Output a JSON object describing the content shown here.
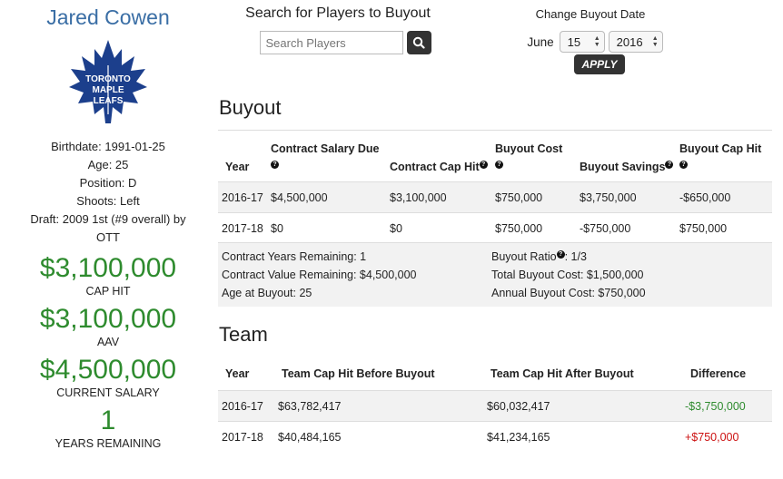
{
  "player": {
    "name": "Jared Cowen",
    "logo_text": [
      "TORONTO",
      "MAPLE",
      "LEAFS"
    ],
    "birthdate": "Birthdate: 1991-01-25",
    "age": "Age: 25",
    "position": "Position: D",
    "shoots": "Shoots: Left",
    "draft": "Draft: 2009 1st (#9 overall) by OTT",
    "stats": [
      {
        "value": "$3,100,000",
        "label": "CAP HIT"
      },
      {
        "value": "$3,100,000",
        "label": "AAV"
      },
      {
        "value": "$4,500,000",
        "label": "CURRENT SALARY"
      },
      {
        "value": "1",
        "label": "YEARS REMAINING"
      }
    ]
  },
  "search": {
    "title": "Search for Players to Buyout",
    "placeholder": "Search Players",
    "icon": "search-icon"
  },
  "date": {
    "title": "Change Buyout Date",
    "month": "June",
    "day": "15",
    "year": "2016",
    "apply_label": "APPLY"
  },
  "buyout": {
    "title": "Buyout",
    "headers": [
      "Year",
      "Contract Salary Due",
      "Contract Cap Hit",
      "Buyout Cost",
      "Buyout Savings",
      "Buyout Cap Hit"
    ],
    "rows": [
      [
        "2016-17",
        "$4,500,000",
        "$3,100,000",
        "$750,000",
        "$3,750,000",
        "-$650,000"
      ],
      [
        "2017-18",
        "$0",
        "$0",
        "$750,000",
        "-$750,000",
        "$750,000"
      ]
    ],
    "summary": {
      "contract_years": "Contract Years Remaining: 1",
      "contract_value": "Contract Value Remaining: $4,500,000",
      "age_at_buyout": "Age at Buyout: 25",
      "ratio_label": "Buyout Ratio",
      "ratio_value": ": 1/3",
      "total_cost": "Total Buyout Cost: $1,500,000",
      "annual_cost": "Annual Buyout Cost: $750,000"
    }
  },
  "team": {
    "title": "Team",
    "headers": [
      "Year",
      "Team Cap Hit Before Buyout",
      "Team Cap Hit After Buyout",
      "Difference"
    ],
    "rows": [
      [
        "2016-17",
        "$63,782,417",
        "$60,032,417",
        "-$3,750,000"
      ],
      [
        "2017-18",
        "$40,484,165",
        "$41,234,165",
        "+$750,000"
      ]
    ]
  },
  "colors": {
    "accent_blue": "#3a6ea5",
    "green": "#2e8b2e",
    "red": "#cc1111",
    "logo_blue": "#1c3f8c"
  }
}
